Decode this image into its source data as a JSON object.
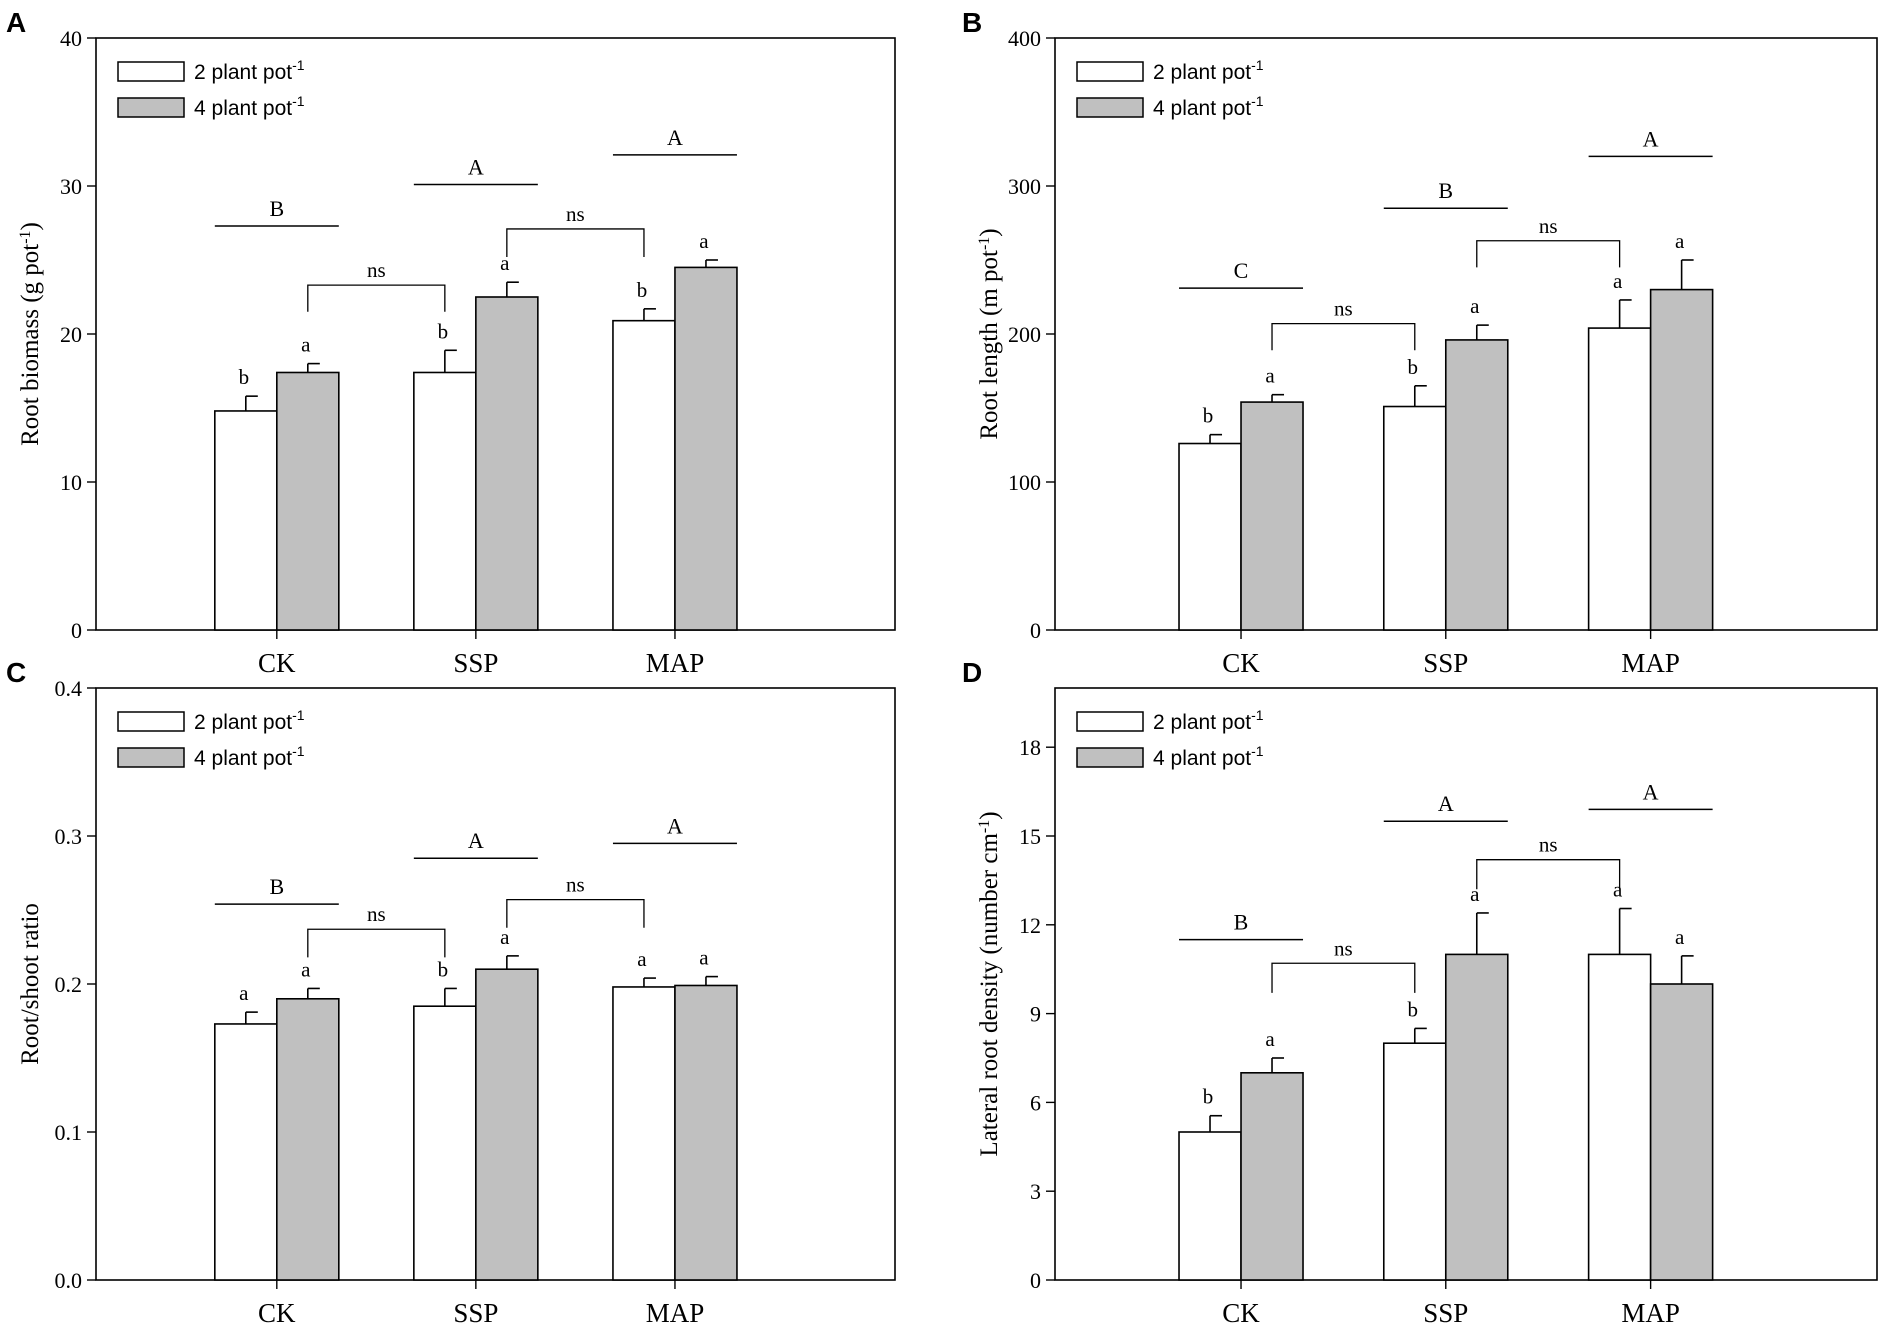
{
  "chart_data": [
    {
      "panel": "A",
      "type": "bar",
      "categories": [
        "CK",
        "SSP",
        "MAP"
      ],
      "ylabel": "Root biomass (g pot",
      "ylabel_sup": "-1",
      "ylabel_end": ")",
      "ylim": [
        0,
        40
      ],
      "yticks": [
        0,
        10,
        20,
        30,
        40
      ],
      "tick_decimals": 0,
      "legend": [
        {
          "label": "2 plant pot",
          "sup": "-1",
          "color": "#ffffff"
        },
        {
          "label": "4 plant pot",
          "sup": "-1",
          "color": "#c0c0c0"
        }
      ],
      "series": [
        {
          "name": "2 plant pot-1",
          "values": [
            14.8,
            17.4,
            20.9
          ],
          "errors": [
            1.0,
            1.5,
            0.8
          ],
          "letters": [
            "b",
            "b",
            "b"
          ]
        },
        {
          "name": "4 plant pot-1",
          "values": [
            17.4,
            22.5,
            24.5
          ],
          "errors": [
            0.6,
            1.0,
            0.5
          ],
          "letters": [
            "a",
            "a",
            "a"
          ]
        }
      ],
      "group_letters": [
        {
          "label": "B",
          "value": 27.3
        },
        {
          "label": "A",
          "value": 30.1
        },
        {
          "label": "A",
          "value": 32.1
        }
      ],
      "comparisons": [
        {
          "label": "ns",
          "from": 0,
          "to": 1,
          "value": 23.3,
          "drop": 1.8
        },
        {
          "label": "ns",
          "from": 1,
          "to": 2,
          "value": 27.1,
          "drop": 1.9
        }
      ]
    },
    {
      "panel": "B",
      "type": "bar",
      "categories": [
        "CK",
        "SSP",
        "MAP"
      ],
      "ylabel": "Root length (m pot",
      "ylabel_sup": "-1",
      "ylabel_end": ")",
      "ylim": [
        0,
        400
      ],
      "yticks": [
        0,
        100,
        200,
        300,
        400
      ],
      "tick_decimals": 0,
      "legend": [
        {
          "label": "2 plant pot",
          "sup": "-1",
          "color": "#ffffff"
        },
        {
          "label": "4 plant pot",
          "sup": "-1",
          "color": "#c0c0c0"
        }
      ],
      "series": [
        {
          "name": "2 plant pot-1",
          "values": [
            126,
            151,
            204
          ],
          "errors": [
            6,
            14,
            19
          ],
          "letters": [
            "b",
            "b",
            "a"
          ]
        },
        {
          "name": "4 plant pot-1",
          "values": [
            154,
            196,
            230
          ],
          "errors": [
            5,
            10,
            20
          ],
          "letters": [
            "a",
            "a",
            "a"
          ]
        }
      ],
      "group_letters": [
        {
          "label": "C",
          "value": 231
        },
        {
          "label": "B",
          "value": 285
        },
        {
          "label": "A",
          "value": 320
        }
      ],
      "comparisons": [
        {
          "label": "ns",
          "from": 0,
          "to": 1,
          "value": 207,
          "drop": 18
        },
        {
          "label": "ns",
          "from": 1,
          "to": 2,
          "value": 263,
          "drop": 18
        }
      ]
    },
    {
      "panel": "C",
      "type": "bar",
      "categories": [
        "CK",
        "SSP",
        "MAP"
      ],
      "ylabel": "Root/shoot ratio",
      "ylabel_sup": "",
      "ylabel_end": "",
      "ylim": [
        0,
        0.4
      ],
      "yticks": [
        0.0,
        0.1,
        0.2,
        0.3,
        0.4
      ],
      "tick_decimals": 1,
      "legend": [
        {
          "label": "2 plant pot",
          "sup": "-1",
          "color": "#ffffff"
        },
        {
          "label": "4 plant pot",
          "sup": "-1",
          "color": "#c0c0c0"
        }
      ],
      "series": [
        {
          "name": "2 plant pot-1",
          "values": [
            0.173,
            0.185,
            0.198
          ],
          "errors": [
            0.008,
            0.012,
            0.006
          ],
          "letters": [
            "a",
            "b",
            "a"
          ]
        },
        {
          "name": "4 plant pot-1",
          "values": [
            0.19,
            0.21,
            0.199
          ],
          "errors": [
            0.007,
            0.009,
            0.006
          ],
          "letters": [
            "a",
            "a",
            "a"
          ]
        }
      ],
      "group_letters": [
        {
          "label": "B",
          "value": 0.254
        },
        {
          "label": "A",
          "value": 0.285
        },
        {
          "label": "A",
          "value": 0.295
        }
      ],
      "comparisons": [
        {
          "label": "ns",
          "from": 0,
          "to": 1,
          "value": 0.237,
          "drop": 0.019
        },
        {
          "label": "ns",
          "from": 1,
          "to": 2,
          "value": 0.257,
          "drop": 0.019
        }
      ]
    },
    {
      "panel": "D",
      "type": "bar",
      "categories": [
        "CK",
        "SSP",
        "MAP"
      ],
      "ylabel": "Lateral root density (number cm",
      "ylabel_sup": "-1",
      "ylabel_end": ")",
      "ylim": [
        0,
        20
      ],
      "yticks": [
        0,
        3,
        6,
        9,
        12,
        15,
        18
      ],
      "tick_decimals": 0,
      "legend": [
        {
          "label": "2 plant pot",
          "sup": "-1",
          "color": "#ffffff"
        },
        {
          "label": "4 plant pot",
          "sup": "-1",
          "color": "#c0c0c0"
        }
      ],
      "series": [
        {
          "name": "2 plant pot-1",
          "values": [
            5.0,
            8.0,
            11.0
          ],
          "errors": [
            0.55,
            0.5,
            1.55
          ],
          "letters": [
            "b",
            "b",
            "a"
          ]
        },
        {
          "name": "4 plant pot-1",
          "values": [
            7.0,
            11.0,
            10.0
          ],
          "errors": [
            0.5,
            1.4,
            0.95
          ],
          "letters": [
            "a",
            "a",
            "a"
          ]
        }
      ],
      "group_letters": [
        {
          "label": "B",
          "value": 11.5
        },
        {
          "label": "A",
          "value": 15.5
        },
        {
          "label": "A",
          "value": 15.9
        }
      ],
      "comparisons": [
        {
          "label": "ns",
          "from": 0,
          "to": 1,
          "value": 10.7,
          "drop": 1.0
        },
        {
          "label": "ns",
          "from": 1,
          "to": 2,
          "value": 14.2,
          "drop": 1.0
        }
      ]
    }
  ]
}
